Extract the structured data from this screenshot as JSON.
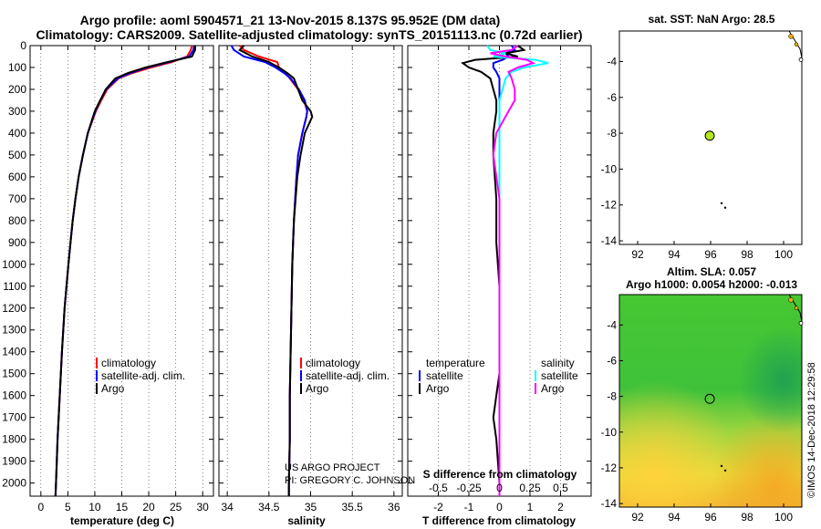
{
  "header": {
    "title_line1": "Argo profile: aoml 5904571_21 13-Nov-2015 8.137S 95.952E (DM data)",
    "title_line2": "Climatology: CARS2009. Satellite-adjusted climatology: synTS_20151113.nc (0.72d earlier)"
  },
  "credits": {
    "project": "US ARGO PROJECT",
    "pi": "PI: GREGORY C. JOHNSON",
    "watermark": "©IMOS 14-Dec-2018 12:29:58"
  },
  "colors": {
    "climatology": "#ff0000",
    "satellite": "#0000ff",
    "argo": "#000000",
    "sat_salinity": "#00ffff",
    "argo_salinity": "#ff00ff",
    "float_marker": "#b5e61d"
  },
  "chart_data": [
    {
      "type": "line",
      "id": "temperature",
      "xlabel": "temperature (deg C)",
      "ylabel": "depth",
      "xlim": [
        -2,
        32
      ],
      "ylim": [
        2060,
        0
      ],
      "xticks": [
        0,
        5,
        10,
        15,
        20,
        25,
        30
      ],
      "yticks": [
        0,
        100,
        200,
        300,
        400,
        500,
        600,
        700,
        800,
        900,
        1000,
        1100,
        1200,
        1300,
        1400,
        1500,
        1600,
        1700,
        1800,
        1900,
        2000
      ],
      "depths": [
        0,
        20,
        50,
        75,
        100,
        125,
        150,
        200,
        250,
        300,
        400,
        500,
        600,
        700,
        800,
        900,
        1000,
        1200,
        1400,
        1600,
        1800,
        2000,
        2060
      ],
      "legend": [
        "climatology",
        "satellite-adj. clim.",
        "Argo"
      ],
      "series": [
        {
          "name": "climatology",
          "values": [
            28.0,
            27.8,
            27.1,
            24.3,
            20.4,
            17.0,
            14.4,
            12.3,
            11.2,
            10.2,
            8.7,
            7.8,
            7.0,
            6.4,
            5.9,
            5.5,
            5.1,
            4.4,
            3.9,
            3.5,
            3.1,
            2.8,
            2.7
          ]
        },
        {
          "name": "satellite-adj. clim.",
          "values": [
            28.4,
            28.3,
            27.5,
            23.8,
            19.7,
            16.6,
            14.2,
            12.1,
            11.0,
            10.1,
            8.7,
            7.8,
            7.0,
            6.4,
            5.9,
            5.5,
            5.1,
            4.4,
            3.9,
            3.5,
            3.1,
            2.8,
            2.7
          ]
        },
        {
          "name": "Argo",
          "values": [
            28.6,
            28.6,
            28.0,
            23.5,
            19.4,
            16.2,
            13.8,
            12.0,
            11.0,
            10.0,
            8.7,
            7.8,
            7.0,
            6.4,
            5.9,
            5.5,
            5.1,
            4.4,
            3.9,
            3.5,
            3.1,
            2.8,
            2.7
          ]
        }
      ]
    },
    {
      "type": "line",
      "id": "salinity",
      "xlabel": "salinity",
      "xlim": [
        33.9,
        36.1
      ],
      "ylim": [
        2060,
        0
      ],
      "xticks": [
        34,
        34.5,
        35,
        35.5,
        36
      ],
      "depths": [
        0,
        20,
        50,
        75,
        100,
        125,
        150,
        200,
        250,
        300,
        325,
        400,
        500,
        600,
        800,
        1000,
        1200,
        1400,
        1600,
        1800,
        2000,
        2060
      ],
      "legend": [
        "climatology",
        "satellite-adj. clim.",
        "Argo"
      ],
      "series": [
        {
          "name": "climatology",
          "values": [
            34.15,
            34.2,
            34.38,
            34.6,
            34.62,
            34.7,
            34.75,
            34.85,
            34.92,
            34.96,
            34.95,
            34.9,
            34.85,
            34.83,
            34.8,
            34.78,
            34.77,
            34.76,
            34.75,
            34.75,
            34.74,
            34.74
          ]
        },
        {
          "name": "satellite-adj. clim.",
          "values": [
            34.05,
            34.08,
            34.2,
            34.45,
            34.58,
            34.68,
            34.76,
            34.86,
            34.93,
            34.96,
            34.95,
            34.9,
            34.85,
            34.83,
            34.8,
            34.78,
            34.77,
            34.76,
            34.75,
            34.75,
            34.74,
            34.74
          ]
        },
        {
          "name": "Argo",
          "values": [
            34.2,
            34.15,
            34.3,
            34.5,
            34.62,
            34.72,
            34.8,
            34.85,
            34.9,
            35.0,
            35.02,
            34.93,
            34.88,
            34.84,
            34.8,
            34.78,
            34.77,
            34.76,
            34.75,
            34.75,
            34.74,
            34.74
          ]
        }
      ]
    },
    {
      "type": "line",
      "id": "difference",
      "xlabel": "T difference from climatology",
      "top_xlabel": "S difference from climatology",
      "xlim": [
        -3.0,
        3.0
      ],
      "ylim": [
        2060,
        0
      ],
      "xticks": [
        -2,
        -1,
        0,
        1,
        2
      ],
      "top_xticks": [
        "-0.5",
        "-0.25",
        "0",
        "0.25",
        "0.5"
      ],
      "depths": [
        0,
        20,
        35,
        50,
        65,
        80,
        100,
        120,
        150,
        200,
        250,
        300,
        400,
        500,
        700,
        900,
        1100,
        1300,
        1500,
        1600,
        1700,
        1800,
        2000,
        2060
      ],
      "legend_temperature": [
        "temperature",
        "satellite",
        "Argo"
      ],
      "legend_salinity": [
        "salinity",
        "satellite",
        "Argo"
      ],
      "series": [
        {
          "name": "temperature satellite",
          "values": [
            0.4,
            0.5,
            0.2,
            0.3,
            0.1,
            -0.2,
            -0.2,
            -0.1,
            0.0,
            0.0,
            0.0,
            0.0,
            0.0,
            0.0,
            0.0,
            0.0,
            0.0,
            0.0,
            0.0,
            0.0,
            0.0,
            0.0,
            0.0,
            0.0
          ]
        },
        {
          "name": "temperature Argo",
          "values": [
            0.6,
            0.8,
            0.2,
            0.6,
            -0.8,
            -1.2,
            -1.0,
            -0.6,
            -0.3,
            -0.2,
            -0.1,
            -0.1,
            -0.2,
            -0.2,
            -0.1,
            -0.1,
            0.0,
            0.0,
            0.0,
            -0.1,
            -0.2,
            -0.1,
            0.0,
            0.0
          ]
        },
        {
          "name": "salinity satellite",
          "values": [
            -0.4,
            -0.3,
            0.2,
            -0.2,
            1.2,
            1.6,
            0.8,
            0.4,
            0.2,
            0.1,
            0.0,
            0.0,
            0.0,
            0.0,
            0.0,
            0.0,
            0.0,
            0.0,
            0.0,
            0.0,
            0.0,
            0.0,
            0.0,
            0.0
          ]
        },
        {
          "name": "salinity Argo",
          "values": [
            0.6,
            0.4,
            -0.3,
            0.2,
            0.9,
            1.1,
            0.6,
            0.3,
            0.4,
            0.5,
            0.5,
            0.3,
            -0.1,
            -0.2,
            0.0,
            0.0,
            0.0,
            0.0,
            0.0,
            0.0,
            0.0,
            0.0,
            0.0,
            0.0
          ]
        }
      ]
    },
    {
      "type": "scatter",
      "id": "sst_map",
      "title": "sat. SST: NaN Argo: 28.5",
      "xlim": [
        91,
        101
      ],
      "ylim": [
        -14.2,
        -2.3
      ],
      "xticks": [
        92,
        94,
        96,
        98,
        100
      ],
      "yticks": [
        -4,
        -6,
        -8,
        -10,
        -12,
        -14
      ],
      "float": {
        "lon": 95.952,
        "lat": -8.137
      },
      "points": [
        {
          "lon": 96.8,
          "lat": -12.15
        },
        {
          "lon": 96.6,
          "lat": -11.9
        }
      ]
    },
    {
      "type": "heatmap",
      "id": "sla_map",
      "title": "Altim. SLA: 0.057",
      "subtitle": "Argo h1000: 0.0054 h2000: -0.013",
      "xlim": [
        91,
        101
      ],
      "ylim": [
        -14.2,
        -2.3
      ],
      "xticks": [
        92,
        94,
        96,
        98,
        100
      ],
      "yticks": [
        -4,
        -6,
        -8,
        -10,
        -12,
        -14
      ],
      "float": {
        "lon": 95.952,
        "lat": -8.137
      },
      "points": [
        {
          "lon": 96.8,
          "lat": -12.15
        },
        {
          "lon": 96.6,
          "lat": -11.9
        }
      ]
    }
  ]
}
